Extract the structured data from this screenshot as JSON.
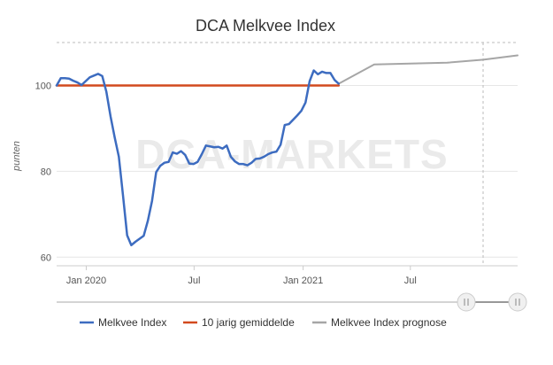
{
  "chart_data": {
    "type": "line",
    "title": "DCA Melkvee Index",
    "ylabel": "punten",
    "xlabel": "",
    "watermark": "DCA-MARKETS",
    "ylim": [
      58,
      110
    ],
    "yticks": [
      60,
      80,
      100
    ],
    "xlim": [
      "2019-11-12",
      "2021-12-29"
    ],
    "xticks": [
      {
        "label": "Jan 2020",
        "date": "2020-01-01"
      },
      {
        "label": "Jul",
        "date": "2020-07-01"
      },
      {
        "label": "Jan 2021",
        "date": "2021-01-01"
      },
      {
        "label": "Jul",
        "date": "2021-07-01"
      }
    ],
    "grid": true,
    "legend_position": "bottom",
    "series": [
      {
        "name": "Melkvee Index",
        "color": "#3d6cc0",
        "points": [
          [
            "2019-11-12",
            100.0
          ],
          [
            "2019-11-19",
            101.7
          ],
          [
            "2019-11-26",
            101.7
          ],
          [
            "2019-12-03",
            101.6
          ],
          [
            "2019-12-10",
            101.1
          ],
          [
            "2019-12-17",
            100.7
          ],
          [
            "2019-12-24",
            100.1
          ],
          [
            "2019-12-31",
            101.0
          ],
          [
            "2020-01-07",
            101.9
          ],
          [
            "2020-01-14",
            102.3
          ],
          [
            "2020-01-21",
            102.7
          ],
          [
            "2020-01-28",
            102.2
          ],
          [
            "2020-02-04",
            98.5
          ],
          [
            "2020-02-11",
            92.8
          ],
          [
            "2020-02-18",
            87.9
          ],
          [
            "2020-02-25",
            83.4
          ],
          [
            "2020-03-03",
            74.4
          ],
          [
            "2020-03-10",
            65.1
          ],
          [
            "2020-03-17",
            62.8
          ],
          [
            "2020-03-24",
            63.6
          ],
          [
            "2020-03-31",
            64.3
          ],
          [
            "2020-04-07",
            65.0
          ],
          [
            "2020-04-14",
            68.5
          ],
          [
            "2020-04-21",
            73.1
          ],
          [
            "2020-04-28",
            79.8
          ],
          [
            "2020-05-05",
            81.3
          ],
          [
            "2020-05-12",
            82.0
          ],
          [
            "2020-05-19",
            82.2
          ],
          [
            "2020-05-26",
            84.4
          ],
          [
            "2020-06-02",
            84.1
          ],
          [
            "2020-06-09",
            84.7
          ],
          [
            "2020-06-16",
            83.8
          ],
          [
            "2020-06-23",
            81.8
          ],
          [
            "2020-06-30",
            81.7
          ],
          [
            "2020-07-07",
            82.2
          ],
          [
            "2020-07-14",
            84.0
          ],
          [
            "2020-07-21",
            86.0
          ],
          [
            "2020-07-28",
            85.8
          ],
          [
            "2020-08-04",
            85.6
          ],
          [
            "2020-08-11",
            85.7
          ],
          [
            "2020-08-18",
            85.3
          ],
          [
            "2020-08-25",
            86.0
          ],
          [
            "2020-09-01",
            83.4
          ],
          [
            "2020-09-08",
            82.3
          ],
          [
            "2020-09-15",
            81.7
          ],
          [
            "2020-09-22",
            81.7
          ],
          [
            "2020-09-29",
            81.4
          ],
          [
            "2020-10-06",
            82.0
          ],
          [
            "2020-10-13",
            82.9
          ],
          [
            "2020-10-20",
            83.0
          ],
          [
            "2020-10-27",
            83.4
          ],
          [
            "2020-11-03",
            84.0
          ],
          [
            "2020-11-10",
            84.4
          ],
          [
            "2020-11-17",
            84.6
          ],
          [
            "2020-11-24",
            86.2
          ],
          [
            "2020-12-01",
            90.8
          ],
          [
            "2020-12-08",
            91.0
          ],
          [
            "2020-12-15",
            92.0
          ],
          [
            "2020-12-22",
            93.0
          ],
          [
            "2020-12-29",
            94.1
          ],
          [
            "2021-01-05",
            96.0
          ],
          [
            "2021-01-12",
            101.0
          ],
          [
            "2021-01-19",
            103.5
          ],
          [
            "2021-01-26",
            102.6
          ],
          [
            "2021-02-02",
            103.2
          ],
          [
            "2021-02-09",
            102.9
          ],
          [
            "2021-02-16",
            102.9
          ],
          [
            "2021-02-23",
            101.3
          ],
          [
            "2021-03-02",
            100.4
          ]
        ]
      },
      {
        "name": "10 jarig gemiddelde",
        "color": "#d24a1e",
        "points": [
          [
            "2019-11-12",
            100.0
          ],
          [
            "2021-03-02",
            100.0
          ]
        ]
      },
      {
        "name": "Melkvee Index prognose",
        "color": "#a6a6a6",
        "points": [
          [
            "2021-03-02",
            100.4
          ],
          [
            "2021-05-01",
            104.9
          ],
          [
            "2021-07-01",
            105.1
          ],
          [
            "2021-09-01",
            105.3
          ],
          [
            "2021-11-01",
            106.0
          ],
          [
            "2021-12-29",
            107.0
          ]
        ]
      }
    ]
  }
}
